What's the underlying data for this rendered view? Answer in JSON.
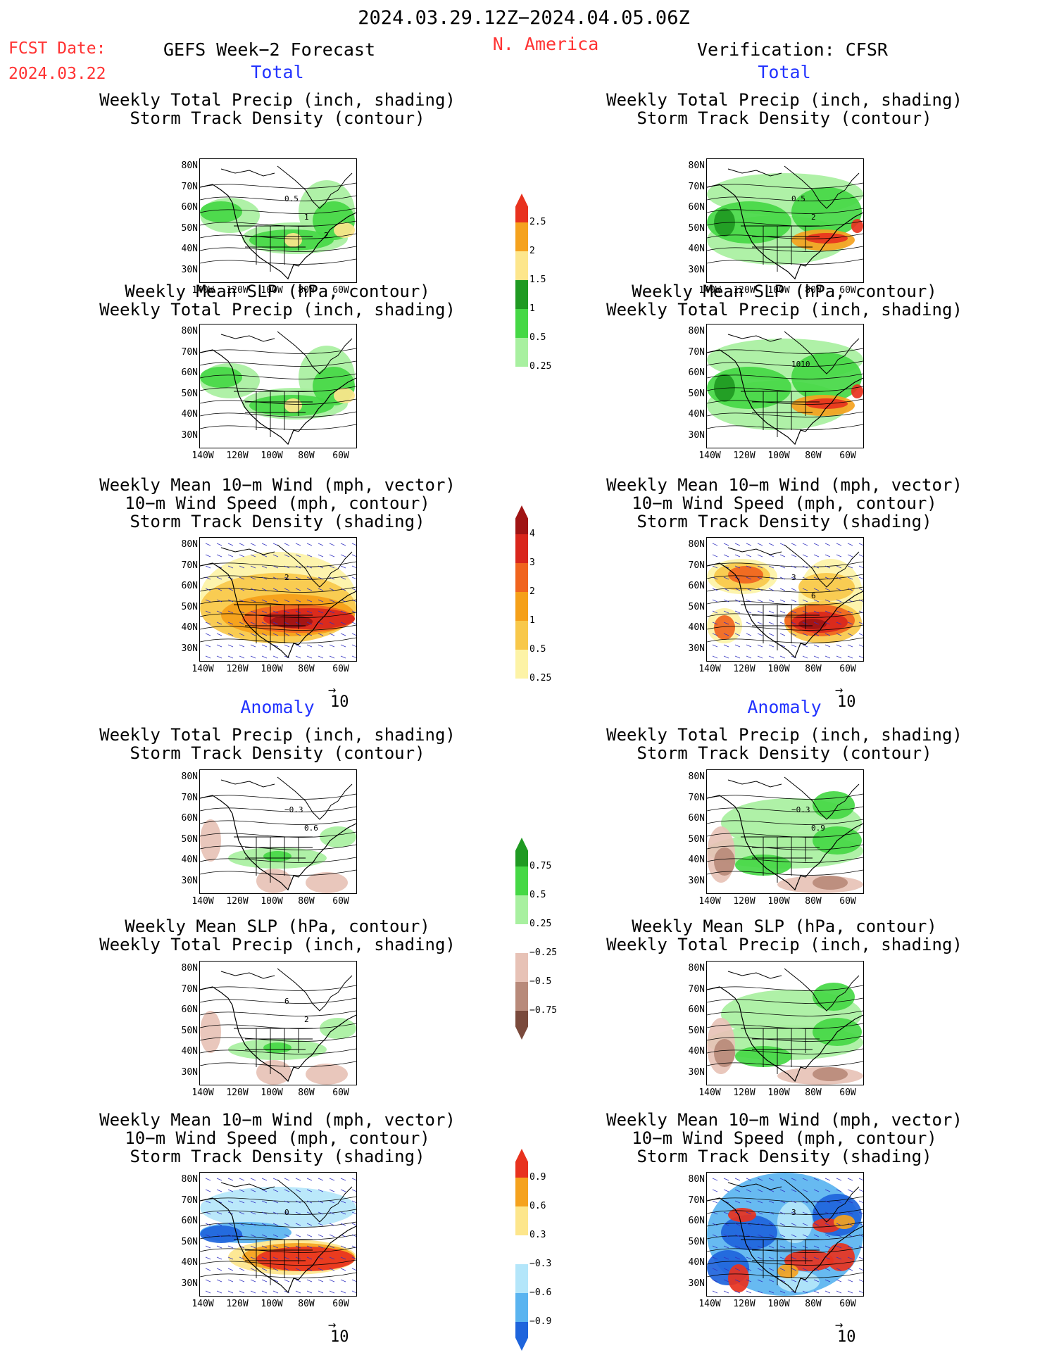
{
  "header": {
    "period": "2024.03.29.12Z−2024.04.05.06Z",
    "fcst_label": "FCST Date:",
    "fcst_date": "2024.03.22",
    "model": "GEFS Week−2 Forecast",
    "region": "N. America",
    "verification": "Verification: CFSR"
  },
  "sections": {
    "total": "Total",
    "anomaly": "Anomaly"
  },
  "titles": {
    "precip_track": [
      "Weekly Total Precip (inch, shading)",
      "Storm Track Density (contour)"
    ],
    "slp_precip": [
      "Weekly Mean SLP (hPa, contour)",
      "Weekly Total Precip (inch, shading)"
    ],
    "wind_track": [
      "Weekly Mean 10−m Wind (mph, vector)",
      "10−m Wind Speed (mph, contour)",
      "Storm Track Density (shading)"
    ]
  },
  "axes": {
    "lat_ticks": [
      "80N",
      "70N",
      "60N",
      "50N",
      "40N",
      "30N"
    ],
    "lon_ticks": [
      "140W",
      "120W",
      "100W",
      "80W",
      "60W"
    ]
  },
  "vector_reference": "10",
  "colorbars": {
    "precip_total": {
      "labels": [
        "2.5",
        "2",
        "1.5",
        "1",
        "0.5",
        "0.25"
      ],
      "colors": [
        "#e8321e",
        "#f5a21e",
        "#fde68c",
        "#1f9a22",
        "#45d845",
        "#a8f0a0"
      ]
    },
    "track_total": {
      "labels": [
        "4",
        "3",
        "2",
        "1",
        "0.5",
        "0.25"
      ],
      "colors": [
        "#a01414",
        "#d9261c",
        "#f0641e",
        "#f5a019",
        "#f8c84a",
        "#fdf3a6"
      ]
    },
    "precip_anom": {
      "labels": [
        "0.75",
        "0.5",
        "0.25",
        "−0.25",
        "−0.5",
        "−0.75"
      ],
      "colors": [
        "#1f9a22",
        "#45d845",
        "#a8f0a0",
        "#ffffff",
        "#e7c2b6",
        "#b88a7a",
        "#7a4a3c"
      ]
    },
    "track_anom": {
      "labels": [
        "0.9",
        "0.6",
        "0.3",
        "−0.3",
        "−0.6",
        "−0.9"
      ],
      "colors": [
        "#e8321e",
        "#f5a21e",
        "#fde68c",
        "#ffffff",
        "#b4e6fa",
        "#5ab4f0",
        "#1e64dc"
      ]
    }
  },
  "contour_labels": {
    "fcst_total_precip": [
      "0.5",
      "1",
      "2"
    ],
    "obs_total_precip": [
      "0.5",
      "2"
    ],
    "obs_total_slp": [
      "1010"
    ],
    "fcst_total_wind": [
      "2"
    ],
    "obs_total_wind": [
      "3",
      "6"
    ],
    "fcst_anom_precip": [
      "−0.3",
      "0.6"
    ],
    "obs_anom_precip": [
      "−0.3",
      "0.9"
    ],
    "fcst_anom_slp": [
      "6",
      "2"
    ],
    "fcst_anom_wind": [
      "0"
    ],
    "obs_anom_wind": [
      "3"
    ]
  },
  "colors": {
    "header_red": "#ff3333",
    "section_blue": "#2233ff",
    "vector_blue": "#3030c0"
  }
}
